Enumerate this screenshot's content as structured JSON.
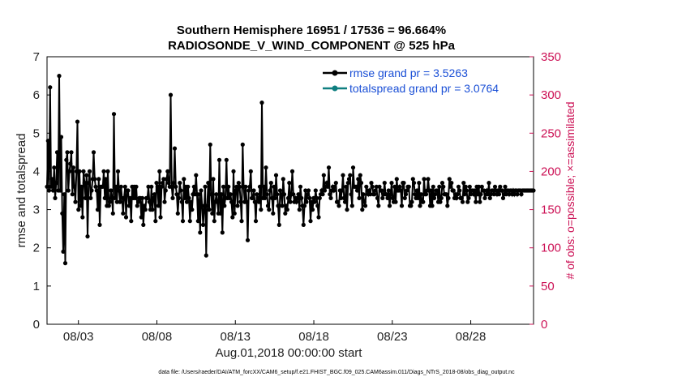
{
  "chart_data": {
    "type": "line",
    "title_line1": "Southern Hemisphere 16951 / 17536 = 96.664%",
    "title_line2": "RADIOSONDE_V_WIND_COMPONENT @ 525 hPa",
    "ylabel": "rmse and totalspread",
    "ylabel_right": "# of obs: o=possible; ×=assimilated",
    "xlabel": "Aug.01,2018 00:00:00 start",
    "footnote": "data file: /Users/raeder/DAI/ATM_forcXX/CAM6_setup/f.e21.FHIST_BGC.f09_025.CAM6assim.011/Diags_NTrS_2018-08/obs_diag_output.nc",
    "xlim": [
      1.0,
      32.0
    ],
    "ylim": [
      0,
      7
    ],
    "ylim_right": [
      0,
      350
    ],
    "x_ticks": [
      3,
      8,
      13,
      18,
      23,
      28
    ],
    "x_tick_labels": [
      "08/03",
      "08/08",
      "08/13",
      "08/18",
      "08/23",
      "08/28"
    ],
    "y_ticks": [
      "0",
      "1",
      "2",
      "3",
      "4",
      "5",
      "6",
      "7"
    ],
    "y_ticks_right": [
      "0",
      "50",
      "100",
      "150",
      "200",
      "250",
      "300",
      "350"
    ],
    "legend": [
      "rmse grand pr = 3.5263",
      "totalspread grand pr = 3.0764"
    ],
    "colors": {
      "rmse": "#000000",
      "spread": "#0f7f80",
      "obs": "#d0105a",
      "legend_text": "#1a4fd6"
    },
    "series": [
      {
        "name": "rmse",
        "values": [
          3.6,
          4.8,
          3.5,
          6.2,
          3.6,
          3.8,
          3.5,
          4.1,
          3.3,
          3.7,
          4.5,
          3.5,
          6.5,
          3.5,
          4.9,
          2.9,
          1.9,
          3.4,
          1.6,
          4.3,
          4.5,
          3.5,
          4.0,
          4.2,
          4.5,
          3.4,
          4.1,
          3.6,
          3.2,
          4.0,
          5.3,
          3.0,
          4.0,
          3.1,
          3.6,
          2.8,
          4.0,
          3.7,
          3.3,
          3.9,
          2.3,
          3.7,
          4.0,
          3.3,
          3.5,
          3.8,
          4.5,
          3.8,
          3.6,
          3.5,
          3.0,
          3.8,
          2.6,
          3.6,
          3.6,
          3.6,
          4.0,
          3.3,
          3.8,
          3.1,
          4.0,
          3.1,
          3.2,
          3.5,
          3.3,
          2.9,
          5.5,
          3.3,
          3.6,
          3.2,
          4.0,
          3.5,
          3.2,
          3.6,
          3.3,
          2.9,
          3.3,
          3.6,
          2.8,
          3.5,
          3.5,
          3.1,
          3.3,
          2.7,
          3.6,
          3.3,
          3.6,
          3.3,
          3.6,
          3.1,
          3.2,
          3.3,
          3.3,
          2.8,
          3.3,
          2.6,
          3.1,
          3.0,
          3.3,
          3.3,
          3.6,
          3.2,
          3.0,
          3.6,
          3.0,
          3.3,
          3.4,
          2.7,
          3.7,
          3.6,
          3.1,
          4.0,
          2.8,
          3.6,
          3.7,
          3.8,
          3.2,
          3.5,
          3.8,
          4.0,
          3.7,
          3.6,
          6.0,
          3.6,
          3.3,
          3.7,
          4.6,
          3.6,
          3.4,
          2.9,
          3.3,
          3.7,
          3.5,
          3.2,
          2.7,
          3.8,
          3.3,
          3.6,
          3.2,
          3.6,
          3.3,
          2.7,
          3.2,
          3.0,
          3.4,
          3.6,
          3.4,
          3.9,
          3.4,
          2.7,
          3.4,
          2.4,
          3.5,
          3.1,
          2.6,
          3.0,
          3.6,
          1.8,
          3.1,
          3.7,
          3.0,
          4.7,
          3.4,
          2.9,
          3.8,
          2.7,
          3.2,
          3.4,
          3.2,
          2.9,
          4.3,
          2.9,
          3.4,
          2.4,
          3.6,
          3.1,
          3.3,
          4.3,
          3.3,
          3.6,
          3.3,
          3.4,
          3.2,
          2.8,
          4.0,
          2.9,
          3.5,
          3.6,
          3.1,
          3.7,
          3.6,
          3.2,
          2.7,
          4.7,
          3.6,
          3.2,
          3.6,
          3.2,
          2.2,
          3.5,
          3.6,
          4.0,
          3.3,
          3.3,
          3.5,
          3.2,
          2.7,
          3.4,
          3.3,
          3.2,
          3.6,
          3.0,
          5.8,
          3.3,
          3.6,
          3.3,
          4.1,
          3.4,
          3.1,
          3.0,
          3.5,
          3.7,
          3.3,
          2.9,
          3.6,
          3.3,
          3.9,
          3.4,
          3.1,
          2.6,
          3.5,
          3.4,
          3.1,
          3.8,
          3.4,
          2.9,
          3.1,
          3.0,
          3.3,
          3.7,
          3.2,
          3.4,
          4.0,
          3.4,
          3.2,
          3.3,
          3.2,
          3.3,
          3.4,
          3.0,
          3.6,
          3.3,
          3.1,
          2.6,
          3.1,
          3.5,
          3.2,
          3.4,
          3.5,
          3.3,
          2.7,
          3.2,
          3.0,
          3.3,
          3.2,
          3.5,
          3.3,
          3.1,
          2.8,
          3.3,
          3.4,
          3.5,
          3.4,
          3.9,
          3.5,
          3.6,
          3.7,
          3.6,
          4.1,
          3.4,
          3.3,
          3.5,
          3.6,
          3.5,
          3.6,
          3.7,
          3.2,
          3.2,
          3.1,
          3.5,
          3.3,
          3.5,
          3.9,
          3.3,
          3.2,
          3.6,
          3.0,
          3.7,
          3.8,
          3.9,
          3.4,
          3.1,
          4.1,
          3.6,
          3.6,
          3.6,
          3.5,
          3.8,
          3.3,
          3.9,
          3.7,
          3.0,
          3.4,
          3.2,
          3.1,
          3.6,
          3.5,
          3.4,
          3.5,
          3.4,
          3.7,
          3.6,
          3.4,
          3.4,
          3.5,
          3.6,
          3.3,
          3.1,
          3.6,
          3.5,
          3.5,
          3.3,
          3.4,
          3.7,
          3.4,
          3.4,
          3.3,
          3.5,
          3.1,
          3.4,
          3.7,
          3.3,
          3.2,
          3.6,
          3.2,
          3.8,
          3.5,
          3.5,
          3.6,
          3.5,
          3.1,
          3.7,
          3.7,
          3.3,
          3.4,
          3.5,
          3.6,
          3.6,
          3.1,
          3.1,
          3.2,
          3.8,
          3.7,
          3.4,
          3.3,
          3.5,
          3.3,
          3.7,
          3.1,
          3.4,
          3.2,
          3.2,
          3.8,
          3.4,
          3.4,
          3.5,
          3.8,
          3.5,
          3.1,
          3.5,
          3.1,
          3.6,
          3.3,
          3.4,
          3.5,
          3.5,
          3.2,
          3.6,
          3.2,
          3.3,
          3.7,
          3.6,
          3.4,
          3.4,
          3.4,
          3.1,
          3.3,
          3.8,
          3.6,
          3.7,
          3.5,
          3.5,
          3.3,
          3.4,
          3.3,
          3.4,
          3.6,
          3.5,
          3.3,
          3.3,
          3.2,
          3.7,
          3.4,
          3.6,
          3.5,
          3.2,
          3.3,
          3.6,
          3.4,
          3.5,
          3.5,
          3.4,
          3.5,
          3.2,
          3.6,
          3.4,
          3.6,
          3.2,
          3.4,
          3.6,
          3.5,
          3.5,
          3.3,
          3.4,
          3.5,
          3.4,
          3.7,
          3.3,
          3.4,
          3.5,
          3.5,
          3.4,
          3.6,
          3.5,
          3.4,
          3.5,
          3.4,
          3.6,
          3.5,
          3.5,
          3.3,
          3.4,
          3.6,
          3.4,
          3.5,
          3.5,
          3.4,
          3.5,
          3.5,
          3.4,
          3.5,
          3.4,
          3.5,
          3.5,
          3.4,
          3.5,
          3.5,
          3.5,
          3.4,
          3.5,
          3.5,
          3.5,
          3.5,
          3.5,
          3.5,
          3.5,
          3.5,
          3.5,
          3.5,
          3.5,
          3.5
        ]
      }
    ]
  }
}
